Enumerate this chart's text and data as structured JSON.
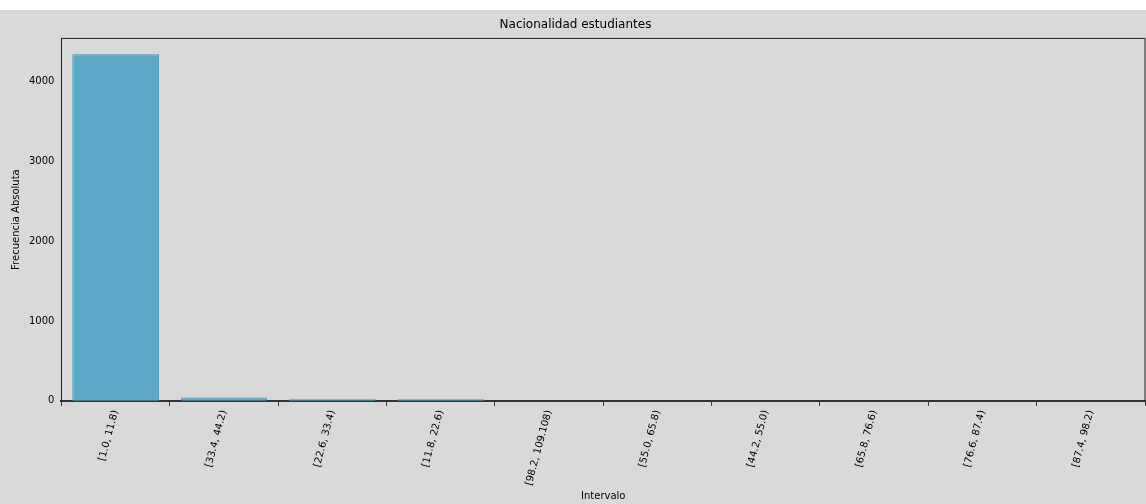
{
  "chart_data": {
    "type": "bar",
    "title": "Nacionalidad estudiantes",
    "xlabel": "Intervalo",
    "ylabel": "Frecuencia Absoluta",
    "categories": [
      "[1.0, 11.8)",
      "[33.4, 44.2)",
      "[22.6, 33.4)",
      "[11.8, 22.6)",
      "[98.2, 109.108)",
      "[55.0, 65.8)",
      "[44.2, 55.0)",
      "[65.8, 76.6)",
      "[76.6, 87.4)",
      "[87.4, 98.2)"
    ],
    "values": [
      4340,
      40,
      20,
      20,
      null,
      null,
      null,
      null,
      null,
      null
    ],
    "color": "#5ba8c8",
    "ylim": [
      0,
      4540
    ],
    "yticks": [
      0,
      1000,
      2000,
      3000,
      4000
    ],
    "grid": false,
    "legend": false
  }
}
